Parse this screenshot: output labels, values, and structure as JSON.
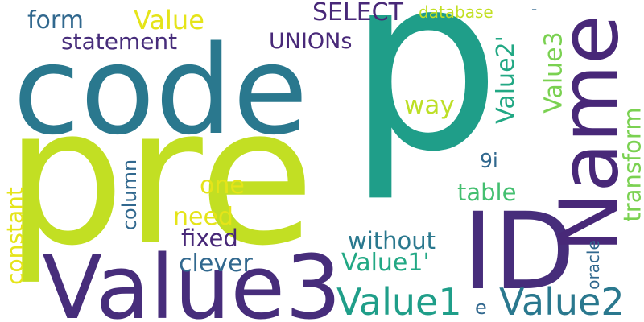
{
  "words": {
    "p": "p",
    "pre": "pre",
    "code": "code",
    "value3_big": "Value3",
    "id": "ID",
    "name": "Name",
    "value1": "Value1",
    "value2": "Value2",
    "value1q": "Value1'",
    "value2q": "Value2'",
    "value3v": "Value3",
    "transform": "transform",
    "select": "SELECT",
    "unions": "UNIONs",
    "statement": "statement",
    "form": "form",
    "value": "Value",
    "database": "database",
    "dash": "-",
    "way": "way",
    "table": "table",
    "without": "without",
    "clever": "clever",
    "fixed": "fixed",
    "need": "need",
    "one": "one",
    "column": "column",
    "constant": "constant",
    "oracle": "oracle",
    "nine_i": "9i",
    "e": "e"
  },
  "palette": {
    "lime": "#c2df23",
    "teal": "#2a788e",
    "green_teal": "#22a884",
    "sea_green": "#1f9e89",
    "dark_purple": "#472d7b",
    "indigo": "#482878",
    "blue": "#31688e",
    "light_green": "#7ad151",
    "yellow": "#e5e419",
    "yellow_green": "#bddf26",
    "mint": "#44bf70"
  }
}
